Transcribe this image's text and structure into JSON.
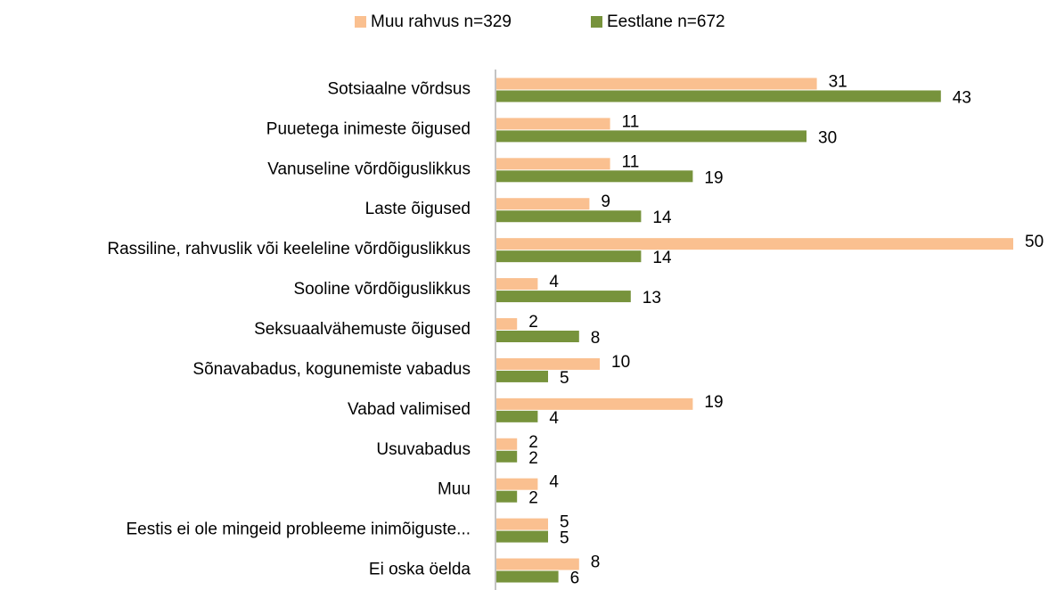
{
  "chart_data": {
    "type": "bar",
    "orientation": "horizontal",
    "categories": [
      "Sotsiaalne võrdsus",
      "Puuetega inimeste õigused",
      "Vanuseline võrdõiguslikkus",
      "Laste õigused",
      "Rassiline, rahvuslik või keeleline võrdõiguslikkus",
      "Sooline võrdõiguslikkus",
      "Seksuaalvähemuste õigused",
      "Sõnavabadus, kogunemiste vabadus",
      "Vabad valimised",
      "Usuvabadus",
      "Muu",
      "Eestis ei ole mingeid probleeme inimõiguste...",
      "Ei oska öelda"
    ],
    "series": [
      {
        "name": "Muu rahvus n=329",
        "color": "#fac090",
        "values": [
          31,
          11,
          11,
          9,
          50,
          4,
          2,
          10,
          19,
          2,
          4,
          5,
          8
        ]
      },
      {
        "name": "Eestlane n=672",
        "color": "#77933c",
        "values": [
          43,
          30,
          19,
          14,
          14,
          13,
          8,
          5,
          4,
          2,
          2,
          5,
          6
        ]
      }
    ],
    "legend": "top"
  }
}
